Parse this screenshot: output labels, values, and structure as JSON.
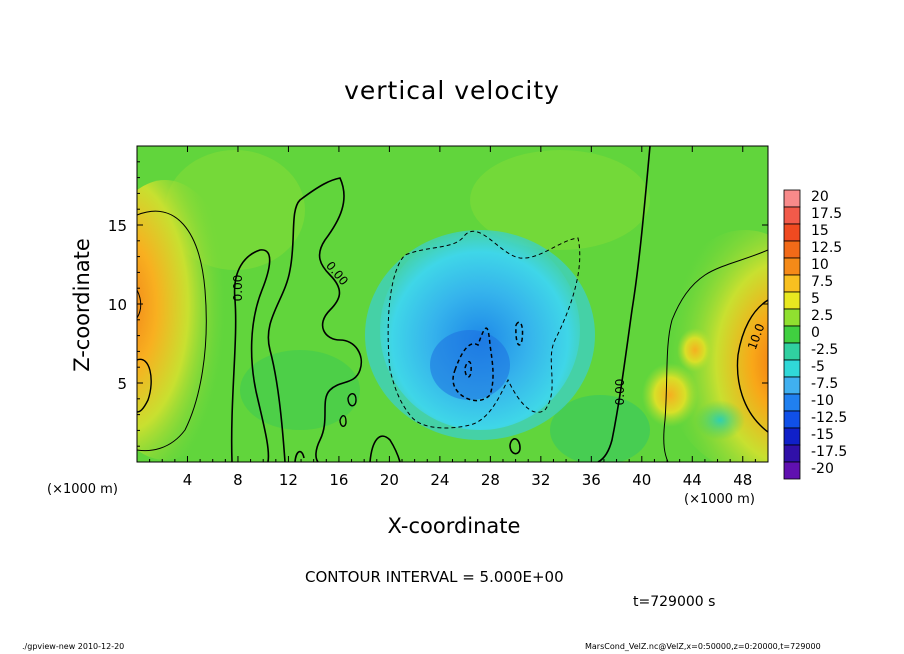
{
  "chart_data": {
    "type": "heatmap",
    "title": "vertical velocity",
    "xlabel": "X-coordinate",
    "ylabel": "Z-coordinate",
    "x_unit_label": "(×1000 m)",
    "xlim": [
      0,
      50
    ],
    "ylim": [
      0,
      20
    ],
    "x_ticks": [
      4,
      8,
      12,
      16,
      20,
      24,
      28,
      32,
      36,
      40,
      44,
      48
    ],
    "x_tick_labels": [
      "4",
      "8",
      "12",
      "16",
      "20",
      "24",
      "28",
      "32",
      "36",
      "40",
      "44",
      "48"
    ],
    "y_ticks": [
      5,
      10,
      15
    ],
    "y_tick_labels": [
      "5",
      "10",
      "15"
    ],
    "colorbar": {
      "levels": [
        "20",
        "17.5",
        "15",
        "12.5",
        "10",
        "7.5",
        "5",
        "2.5",
        "0",
        "-2.5",
        "-5",
        "-7.5",
        "-10",
        "-12.5",
        "-15",
        "-17.5",
        "-20"
      ],
      "colors": [
        "#f88a8a",
        "#f25a4a",
        "#f04a20",
        "#f26a18",
        "#f58a18",
        "#f8c020",
        "#e8e820",
        "#90e030",
        "#40d040",
        "#30d0a0",
        "#30d8d8",
        "#40b0f0",
        "#2080f0",
        "#1050e8",
        "#1020c8",
        "#3010a8",
        "#6010b0"
      ]
    },
    "contour_labels": [
      "0.00",
      "0.00",
      "0.00",
      "10.0"
    ],
    "contour_interval": "CONTOUR INTERVAL = 5.000E+00",
    "time": "t=729000 s"
  },
  "footer": {
    "left": "./gpview-new   2010-12-20",
    "right": "MarsCond_VelZ.nc@VelZ,x=0:50000,z=0:20000,t=729000"
  }
}
